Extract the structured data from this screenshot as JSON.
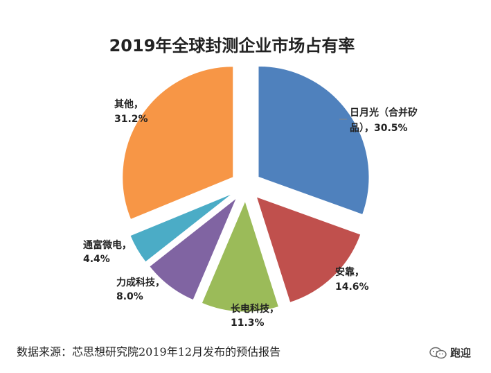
{
  "chart_data": {
    "type": "pie",
    "title": "2019年全球封测企业市场占有率",
    "slices": [
      {
        "label_lines": [
          "日月光（合并矽",
          "品），30.5%"
        ],
        "name": "日月光（合并矽品）",
        "value": 30.5,
        "color": "#4F81BD"
      },
      {
        "label_lines": [
          "安靠，",
          "14.6%"
        ],
        "name": "安靠",
        "value": 14.6,
        "color": "#C0504D"
      },
      {
        "label_lines": [
          "长电科技，",
          "11.3%"
        ],
        "name": "长电科技",
        "value": 11.3,
        "color": "#9BBB59"
      },
      {
        "label_lines": [
          "力成科技，",
          "8.0%"
        ],
        "name": "力成科技",
        "value": 8.0,
        "color": "#8064A2"
      },
      {
        "label_lines": [
          "通富微电，",
          "4.4%"
        ],
        "name": "通富微电",
        "value": 4.4,
        "color": "#4BACC6"
      },
      {
        "label_lines": [
          "其他，",
          "31.2%"
        ],
        "name": "其他",
        "value": 31.2,
        "color": "#F79646"
      }
    ]
  },
  "footer": {
    "source": "数据来源：芯思想研究院2019年12月发布的预估报告",
    "watermark": "跑迎",
    "watermark_icon": "wechat-icon"
  }
}
